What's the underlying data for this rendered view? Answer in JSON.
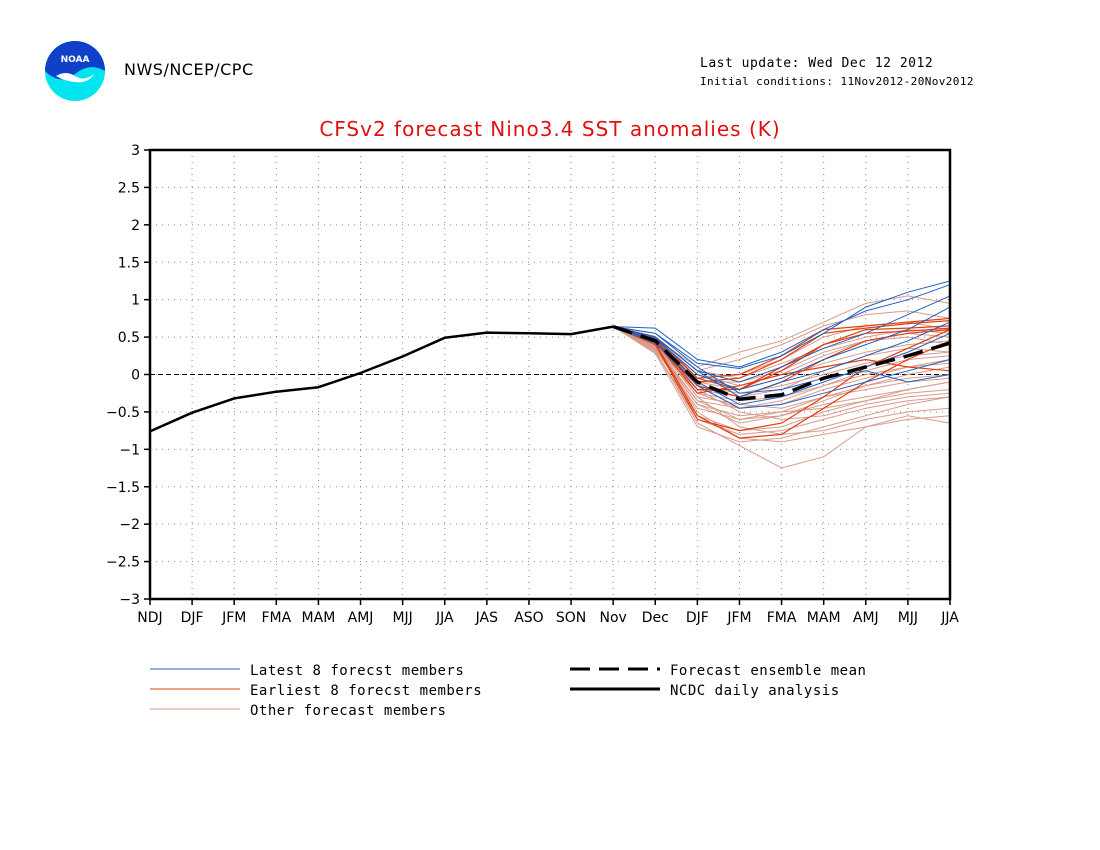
{
  "header": {
    "org": "NWS/NCEP/CPC",
    "last_update": "Last update: Wed Dec 12 2012",
    "initial_conditions": "Initial conditions: 11Nov2012-20Nov2012",
    "logo_text": "NOAA"
  },
  "colors": {
    "title": "#e01010",
    "latest": "#2060c0",
    "earliest": "#e04010",
    "other": "#d89b8c",
    "mean": "#000000",
    "analysis": "#000000"
  },
  "chart_data": {
    "type": "line",
    "title": "CFSv2 forecast Nino3.4 SST anomalies (K)",
    "xlabel": "",
    "ylabel": "",
    "categories": [
      "NDJ",
      "DJF",
      "JFM",
      "FMA",
      "MAM",
      "AMJ",
      "MJJ",
      "JJA",
      "JAS",
      "ASO",
      "SON",
      "Nov",
      "Dec",
      "DJF",
      "JFM",
      "FMA",
      "MAM",
      "AMJ",
      "MJJ",
      "JJA"
    ],
    "ylim": [
      -3,
      3
    ],
    "yticks": [
      "3",
      "2.5",
      "2",
      "1.5",
      "1",
      "0.5",
      "0",
      "−0.5",
      "−1",
      "−1.5",
      "−2",
      "−2.5",
      "−3"
    ],
    "grid": true,
    "legend_position": "bottom",
    "legend": {
      "latest": "Latest 8 forecst members",
      "earliest": "Earliest 8 forecst members",
      "other": "Other forecast members",
      "mean": "Forecast ensemble mean",
      "analysis": "NCDC daily analysis"
    },
    "analysis": [
      -0.76,
      -0.51,
      -0.32,
      -0.23,
      -0.17,
      0.02,
      0.24,
      0.49,
      0.56,
      0.55,
      0.54,
      0.64
    ],
    "ensemble_mean": {
      "start_index": 11,
      "values": [
        0.64,
        0.45,
        -0.1,
        -0.33,
        -0.27,
        -0.05,
        0.1,
        0.25,
        0.42
      ]
    },
    "members": {
      "start_index": 11,
      "latest": [
        [
          0.64,
          0.55,
          0.15,
          0.08,
          0.25,
          0.55,
          0.9,
          1.1,
          1.25
        ],
        [
          0.64,
          0.62,
          0.2,
          0.1,
          0.3,
          0.6,
          0.85,
          1.0,
          1.2
        ],
        [
          0.64,
          0.5,
          0.05,
          -0.1,
          0.1,
          0.35,
          0.55,
          0.8,
          1.05
        ],
        [
          0.64,
          0.48,
          0.0,
          -0.2,
          -0.05,
          0.2,
          0.4,
          0.6,
          0.9
        ],
        [
          0.64,
          0.45,
          -0.1,
          -0.4,
          -0.3,
          -0.1,
          0.1,
          0.3,
          0.55
        ],
        [
          0.64,
          0.42,
          -0.15,
          -0.45,
          -0.4,
          -0.25,
          -0.1,
          0.05,
          0.2
        ],
        [
          0.64,
          0.5,
          0.05,
          -0.3,
          -0.1,
          0.05,
          0.25,
          0.45,
          0.7
        ],
        [
          0.64,
          0.55,
          0.1,
          -0.25,
          -0.2,
          -0.05,
          0.05,
          -0.1,
          0.0
        ]
      ],
      "earliest": [
        [
          0.64,
          0.5,
          -0.05,
          0.0,
          0.25,
          0.6,
          0.65,
          0.7,
          0.75
        ],
        [
          0.64,
          0.45,
          -0.2,
          -0.2,
          0.05,
          0.4,
          0.6,
          0.62,
          0.65
        ],
        [
          0.64,
          0.4,
          -0.6,
          -0.75,
          -0.65,
          -0.3,
          0.1,
          0.35,
          0.6
        ],
        [
          0.64,
          0.42,
          -0.55,
          -0.85,
          -0.8,
          -0.45,
          -0.1,
          0.2,
          0.45
        ],
        [
          0.64,
          0.48,
          -0.1,
          -0.05,
          0.2,
          0.55,
          0.62,
          0.68,
          0.72
        ],
        [
          0.64,
          0.46,
          -0.15,
          -0.3,
          -0.1,
          0.2,
          0.45,
          0.55,
          0.6
        ],
        [
          0.64,
          0.44,
          -0.25,
          -0.15,
          0.0,
          0.1,
          0.2,
          0.1,
          0.05
        ],
        [
          0.64,
          0.5,
          -0.05,
          -0.2,
          0.1,
          0.4,
          0.55,
          0.58,
          0.62
        ]
      ],
      "other": [
        [
          0.64,
          0.48,
          0.1,
          0.3,
          0.45,
          0.7,
          0.95,
          1.05,
          0.95
        ],
        [
          0.64,
          0.5,
          0.05,
          0.2,
          0.4,
          0.65,
          0.8,
          0.85,
          0.75
        ],
        [
          0.64,
          0.45,
          -0.05,
          0.0,
          0.2,
          0.5,
          0.65,
          0.7,
          0.6
        ],
        [
          0.64,
          0.4,
          -0.1,
          -0.1,
          0.05,
          0.3,
          0.45,
          0.5,
          0.4
        ],
        [
          0.64,
          0.38,
          -0.2,
          -0.3,
          -0.2,
          0.05,
          0.25,
          0.35,
          0.3
        ],
        [
          0.64,
          0.35,
          -0.35,
          -0.45,
          -0.35,
          -0.15,
          0.05,
          0.2,
          0.25
        ],
        [
          0.64,
          0.33,
          -0.45,
          -0.6,
          -0.55,
          -0.35,
          -0.15,
          0.0,
          0.1
        ],
        [
          0.64,
          0.3,
          -0.55,
          -0.75,
          -0.7,
          -0.5,
          -0.35,
          -0.2,
          -0.1
        ],
        [
          0.64,
          0.28,
          -0.7,
          -0.9,
          -0.85,
          -0.7,
          -0.55,
          -0.4,
          -0.3
        ],
        [
          0.64,
          0.32,
          -0.65,
          -0.95,
          -1.25,
          -1.1,
          -0.7,
          -0.55,
          -0.65
        ],
        [
          0.64,
          0.36,
          -0.4,
          -0.55,
          -0.5,
          -0.45,
          -0.35,
          -0.25,
          -0.2
        ],
        [
          0.64,
          0.42,
          -0.3,
          -0.4,
          -0.45,
          -0.3,
          -0.2,
          -0.1,
          -0.05
        ],
        [
          0.64,
          0.44,
          -0.25,
          -0.35,
          -0.3,
          -0.15,
          0.0,
          0.1,
          0.15
        ],
        [
          0.64,
          0.46,
          -0.15,
          -0.25,
          -0.15,
          0.0,
          0.15,
          0.25,
          0.3
        ],
        [
          0.64,
          0.47,
          -0.2,
          -0.5,
          -0.6,
          -0.55,
          -0.4,
          -0.3,
          -0.25
        ],
        [
          0.64,
          0.43,
          -0.3,
          -0.7,
          -0.8,
          -0.75,
          -0.6,
          -0.5,
          -0.45
        ],
        [
          0.64,
          0.41,
          -0.5,
          -0.85,
          -0.9,
          -0.8,
          -0.7,
          -0.6,
          -0.55
        ],
        [
          0.64,
          0.39,
          -0.35,
          -0.6,
          -0.5,
          -0.3,
          -0.15,
          -0.05,
          0.0
        ],
        [
          0.64,
          0.37,
          -0.25,
          -0.45,
          -0.4,
          -0.2,
          -0.05,
          0.1,
          0.2
        ],
        [
          0.64,
          0.49,
          0.0,
          -0.15,
          0.0,
          0.25,
          0.45,
          0.55,
          0.5
        ],
        [
          0.64,
          0.51,
          0.05,
          -0.05,
          0.15,
          0.35,
          0.5,
          0.6,
          0.55
        ],
        [
          0.64,
          0.34,
          -0.4,
          -0.65,
          -0.55,
          -0.4,
          -0.3,
          -0.2,
          -0.1
        ],
        [
          0.64,
          0.3,
          -0.6,
          -0.8,
          -0.75,
          -0.6,
          -0.45,
          -0.35,
          -0.3
        ],
        [
          0.64,
          0.45,
          -0.1,
          -0.2,
          -0.05,
          0.15,
          0.3,
          0.4,
          0.45
        ]
      ]
    }
  }
}
